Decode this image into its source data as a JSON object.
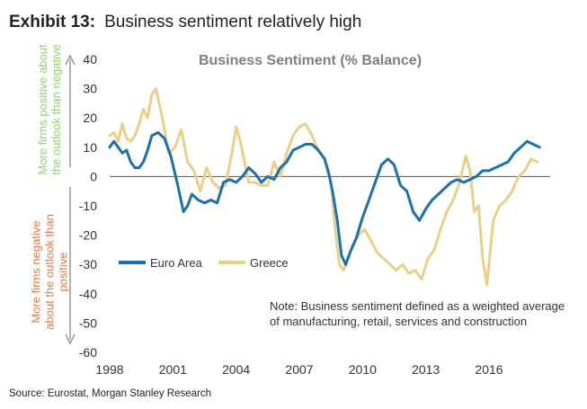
{
  "exhibit": {
    "number": "Exhibit 13:",
    "title": "Business sentiment relatively high"
  },
  "source": "Source: Eurostat, Morgan Stanley Research",
  "side_labels": {
    "positive": "More firms positive about the outlook than negative",
    "negative": "More firms negative about the outlook than positive"
  },
  "note": "Note: Business sentiment defined as a weighted average of manufacturing, retail, services and construction",
  "colors": {
    "euro_area": "#1f6fa8",
    "greece": "#e9cf8a",
    "positive_label": "#92d16e",
    "negative_label": "#e07a4a",
    "axis": "#888888"
  },
  "chart_data": {
    "type": "line",
    "title": "Business Sentiment (% Balance)",
    "xlabel": "",
    "ylabel": "",
    "xlim": [
      1998,
      2018.9
    ],
    "ylim": [
      -60,
      40
    ],
    "yticks": [
      40,
      30,
      20,
      10,
      0,
      -10,
      -20,
      -30,
      -40,
      -50,
      -60
    ],
    "xticks": [
      "1998",
      "2001",
      "2004",
      "2007",
      "2010",
      "2013",
      "2016"
    ],
    "legend": "middle-left",
    "series": [
      {
        "name": "Euro Area",
        "color": "#1f6fa8",
        "x": [
          1998,
          1998.2,
          1998.4,
          1998.6,
          1998.8,
          1999,
          1999.2,
          1999.4,
          1999.6,
          1999.8,
          2000,
          2000.3,
          2000.6,
          2000.9,
          2001.2,
          2001.5,
          2001.7,
          2001.9,
          2002.2,
          2002.5,
          2002.8,
          2003.1,
          2003.4,
          2003.7,
          2004,
          2004.3,
          2004.6,
          2004.9,
          2005.2,
          2005.5,
          2005.8,
          2006.1,
          2006.4,
          2006.7,
          2007,
          2007.3,
          2007.6,
          2007.9,
          2008.2,
          2008.4,
          2008.6,
          2008.8,
          2009,
          2009.2,
          2009.4,
          2009.7,
          2010,
          2010.3,
          2010.6,
          2010.9,
          2011.2,
          2011.5,
          2011.8,
          2012.1,
          2012.4,
          2012.7,
          2013,
          2013.3,
          2013.6,
          2013.9,
          2014.2,
          2014.5,
          2014.8,
          2015.1,
          2015.4,
          2015.7,
          2016,
          2016.3,
          2016.6,
          2016.9,
          2017.2,
          2017.5,
          2017.8,
          2018.1,
          2018.4
        ],
        "values": [
          10,
          12,
          10,
          8,
          9,
          5,
          3,
          3,
          5,
          9,
          14,
          15,
          13,
          7,
          -2,
          -12,
          -10,
          -6,
          -8,
          -9,
          -8,
          -9,
          -2,
          -1,
          -2,
          0,
          3,
          1,
          -2,
          0,
          -1,
          3,
          5,
          9,
          10,
          11,
          11,
          9,
          6,
          1,
          -6,
          -15,
          -27,
          -30,
          -26,
          -21,
          -14,
          -8,
          -2,
          4,
          6,
          4,
          -3,
          -5,
          -12,
          -15,
          -11,
          -8,
          -6,
          -4,
          -2,
          -1,
          -2,
          -1,
          0,
          2,
          2,
          3,
          4,
          5,
          8,
          10,
          12,
          11,
          10
        ]
      },
      {
        "name": "Greece",
        "color": "#e9cf8a",
        "x": [
          1998,
          1998.2,
          1998.4,
          1998.6,
          1998.8,
          1999,
          1999.2,
          1999.4,
          1999.6,
          1999.8,
          2000,
          2000.2,
          2000.5,
          2000.8,
          2001.1,
          2001.4,
          2001.7,
          2002,
          2002.3,
          2002.6,
          2002.9,
          2003.2,
          2003.5,
          2003.8,
          2004,
          2004.2,
          2004.4,
          2004.6,
          2004.9,
          2005.2,
          2005.5,
          2005.8,
          2006.1,
          2006.4,
          2006.7,
          2007,
          2007.3,
          2007.6,
          2007.9,
          2008.2,
          2008.5,
          2008.7,
          2008.9,
          2009.1,
          2009.3,
          2009.5,
          2009.8,
          2010.1,
          2010.4,
          2010.7,
          2011,
          2011.3,
          2011.6,
          2011.9,
          2012.2,
          2012.5,
          2012.8,
          2013.1,
          2013.4,
          2013.7,
          2014,
          2014.3,
          2014.6,
          2014.9,
          2015.1,
          2015.3,
          2015.5,
          2015.7,
          2015.9,
          2016.2,
          2016.5,
          2016.8,
          2017.1,
          2017.4,
          2017.7,
          2018,
          2018.3
        ],
        "values": [
          14,
          15,
          12,
          18,
          13,
          12,
          14,
          18,
          23,
          20,
          28,
          30,
          20,
          8,
          10,
          16,
          5,
          2,
          -5,
          3,
          -2,
          -4,
          -3,
          8,
          17,
          12,
          5,
          -2,
          -2,
          -3,
          -3,
          5,
          0,
          8,
          14,
          17,
          18,
          14,
          9,
          6,
          -2,
          -18,
          -30,
          -32,
          -28,
          -24,
          -20,
          -18,
          -22,
          -26,
          -28,
          -30,
          -32,
          -30,
          -33,
          -32,
          -35,
          -28,
          -25,
          -18,
          -12,
          -8,
          -2,
          7,
          2,
          -12,
          -10,
          -28,
          -37,
          -15,
          -10,
          -8,
          -5,
          0,
          2,
          6,
          5
        ]
      }
    ]
  }
}
